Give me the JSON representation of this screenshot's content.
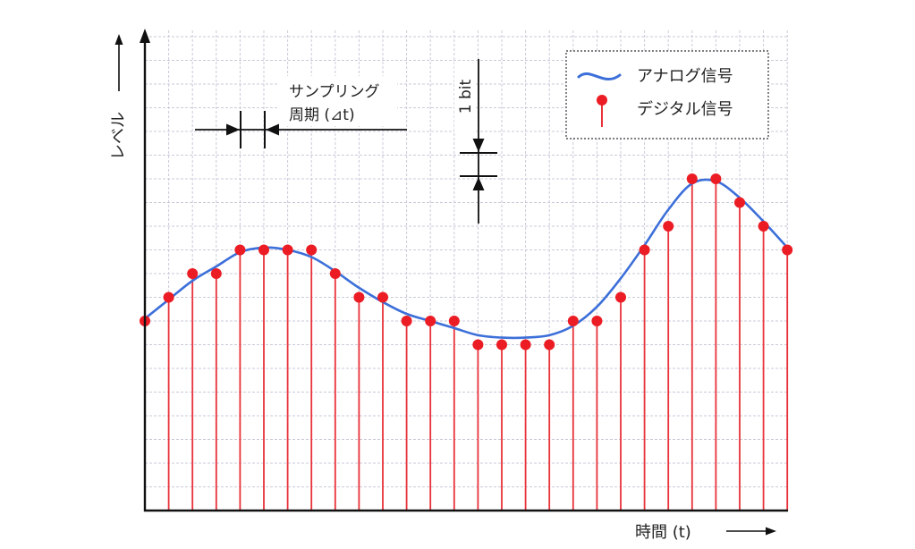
{
  "labels": {
    "y_axis": "レベル",
    "x_axis": "時間 (t)",
    "sampling_line1": "サンプリング",
    "sampling_line2": "周期 (⊿t)",
    "bit_label": "1 bit"
  },
  "legend": {
    "analog": "アナログ信号",
    "digital": "デジタル信号"
  },
  "colors": {
    "analog_line": "#3c6fd9",
    "digital_stem": "#e8323a",
    "digital_dot": "#ec1c24",
    "grid": "#c9cbd8",
    "axis": "#111111"
  },
  "chart_data": {
    "type": "scatter",
    "series": [
      {
        "name": "デジタル信号",
        "values": [
          8,
          9,
          10,
          10,
          11,
          11,
          11,
          11,
          10,
          9,
          9,
          8,
          8,
          8,
          7,
          7,
          7,
          7,
          8,
          8,
          9,
          11,
          12,
          14,
          14,
          13,
          12,
          11
        ]
      },
      {
        "name": "アナログ信号",
        "values": [
          8.1,
          8.9,
          9.7,
          10.3,
          10.9,
          11.1,
          11.0,
          10.7,
          10.1,
          9.4,
          8.8,
          8.3,
          8.0,
          7.7,
          7.4,
          7.3,
          7.3,
          7.4,
          7.8,
          8.6,
          9.8,
          11.2,
          12.7,
          13.8,
          13.9,
          13.2,
          12.2,
          11.1
        ]
      }
    ],
    "grid": true,
    "legend_position": "top-right"
  }
}
